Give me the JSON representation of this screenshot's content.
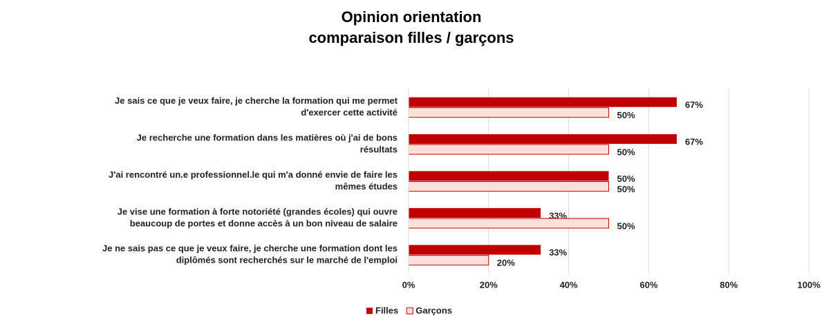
{
  "chart_data": {
    "type": "hbar",
    "title": "Opinion orientation",
    "subtitle": "comparaison filles / garçons",
    "categories": [
      [
        "Je sais ce que je veux faire, je cherche la formation qui me permet",
        "d'exercer cette activité"
      ],
      [
        "Je recherche une formation dans les matières où j'ai de bons",
        "résultats"
      ],
      [
        "J'ai rencontré un.e professionnel.le qui m'a donné envie de faire les",
        "mêmes études"
      ],
      [
        "Je vise une formation à forte notoriété (grandes écoles) qui ouvre",
        "beaucoup de portes et donne accès à un bon niveau de salaire"
      ],
      [
        "Je ne sais pas ce que je veux faire, je cherche une formation dont les",
        "diplômés sont recherchés sur le marché de l'emploi"
      ]
    ],
    "series": [
      {
        "name": "Filles",
        "color": "#c00000",
        "values": [
          67,
          67,
          50,
          33,
          33
        ],
        "value_labels": [
          "67%",
          "67%",
          "50%",
          "33%",
          "33%"
        ]
      },
      {
        "name": "Garçons",
        "color": "#fde0d9",
        "stroke": "#c00000",
        "values": [
          50,
          50,
          50,
          50,
          20
        ],
        "value_labels": [
          "50%",
          "50%",
          "50%",
          "50%",
          "20%"
        ]
      }
    ],
    "xlim": [
      0,
      100
    ],
    "xticks": [
      {
        "value": 0,
        "label": "0%"
      },
      {
        "value": 20,
        "label": "20%"
      },
      {
        "value": 40,
        "label": "40%"
      },
      {
        "value": 60,
        "label": "60%"
      },
      {
        "value": 80,
        "label": "80%"
      },
      {
        "value": 100,
        "label": "100%"
      }
    ],
    "grid": true,
    "legend": "bottom"
  }
}
